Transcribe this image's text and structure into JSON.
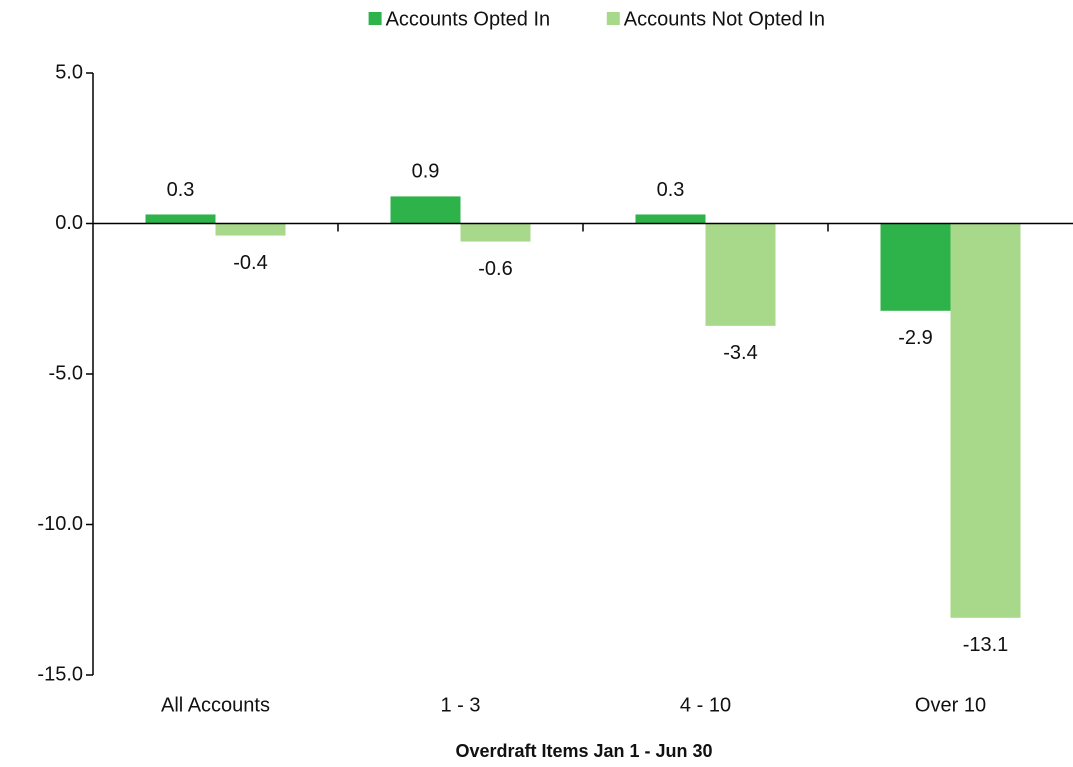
{
  "chart_data": {
    "type": "bar",
    "x_label": "Overdraft Items Jan 1 - Jun 30",
    "categories": [
      "All Accounts",
      "1 - 3",
      "4 - 10",
      "Over 10"
    ],
    "series": [
      {
        "name": "Accounts Opted In",
        "color": "#2db34a",
        "values": [
          0.3,
          0.9,
          0.3,
          -2.9
        ]
      },
      {
        "name": "Accounts Not Opted In",
        "color": "#a8d98a",
        "values": [
          -0.4,
          -0.6,
          -3.4,
          -13.1
        ]
      }
    ],
    "ylim": [
      -15,
      5
    ],
    "yticks": [
      {
        "value": -15,
        "label": "-15.0"
      },
      {
        "value": -10,
        "label": "-10.0"
      },
      {
        "value": -5,
        "label": "-5.0"
      },
      {
        "value": 0,
        "label": "0.0"
      },
      {
        "value": 5,
        "label": "5.0"
      }
    ],
    "grid": false,
    "legend": "top"
  }
}
